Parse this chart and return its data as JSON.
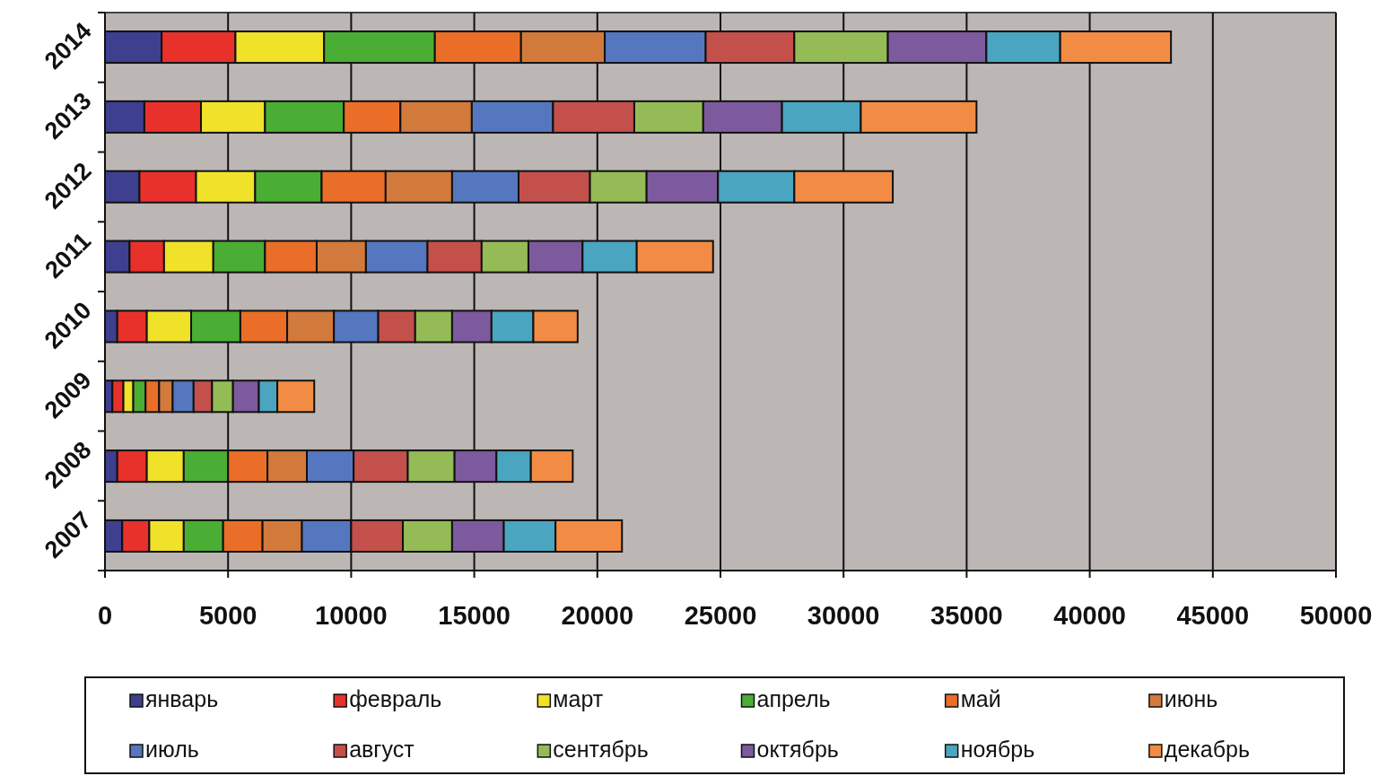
{
  "chart_data": {
    "type": "bar",
    "orientation": "horizontal",
    "stacked": true,
    "categories": [
      "2014",
      "2013",
      "2012",
      "2011",
      "2010",
      "2009",
      "2008",
      "2007"
    ],
    "series": [
      {
        "name": "январь",
        "color": "#3f3f8f",
        "values": [
          2300,
          1600,
          1400,
          1000,
          500,
          300,
          500,
          700
        ]
      },
      {
        "name": "февраль",
        "color": "#e8312a",
        "values": [
          3000,
          2300,
          2300,
          1400,
          1200,
          450,
          1200,
          1100
        ]
      },
      {
        "name": "март",
        "color": "#f0e229",
        "values": [
          3600,
          2600,
          2400,
          2000,
          1800,
          400,
          1500,
          1400
        ]
      },
      {
        "name": "апрель",
        "color": "#4aae34",
        "values": [
          4500,
          3200,
          2700,
          2100,
          2000,
          500,
          1800,
          1600
        ]
      },
      {
        "name": "май",
        "color": "#ea6e27",
        "values": [
          3500,
          2300,
          2600,
          2100,
          1900,
          550,
          1600,
          1600
        ]
      },
      {
        "name": "июнь",
        "color": "#d27a3c",
        "values": [
          3400,
          2900,
          2700,
          2000,
          1900,
          550,
          1600,
          1600
        ]
      },
      {
        "name": "июль",
        "color": "#5577bf",
        "values": [
          4100,
          3300,
          2700,
          2500,
          1800,
          850,
          1900,
          2000
        ]
      },
      {
        "name": "август",
        "color": "#c4504c",
        "values": [
          3600,
          3300,
          2900,
          2200,
          1500,
          750,
          2200,
          2100
        ]
      },
      {
        "name": "сентябрь",
        "color": "#94bb55",
        "values": [
          3800,
          2800,
          2300,
          1900,
          1500,
          850,
          1900,
          2000
        ]
      },
      {
        "name": "октябрь",
        "color": "#7d5a9d",
        "values": [
          4000,
          3200,
          2900,
          2200,
          1600,
          1050,
          1700,
          2100
        ]
      },
      {
        "name": "ноябрь",
        "color": "#4aa5c0",
        "values": [
          3000,
          3200,
          3100,
          2200,
          1700,
          750,
          1400,
          2100
        ]
      },
      {
        "name": "декабрь",
        "color": "#f28c44",
        "values": [
          4500,
          4700,
          4000,
          3100,
          1800,
          1500,
          1700,
          2700
        ]
      }
    ],
    "xlim": [
      0,
      50000
    ],
    "xticks": [
      0,
      5000,
      10000,
      15000,
      20000,
      25000,
      30000,
      35000,
      40000,
      45000,
      50000
    ],
    "grid": "x",
    "legend": "bottom"
  }
}
